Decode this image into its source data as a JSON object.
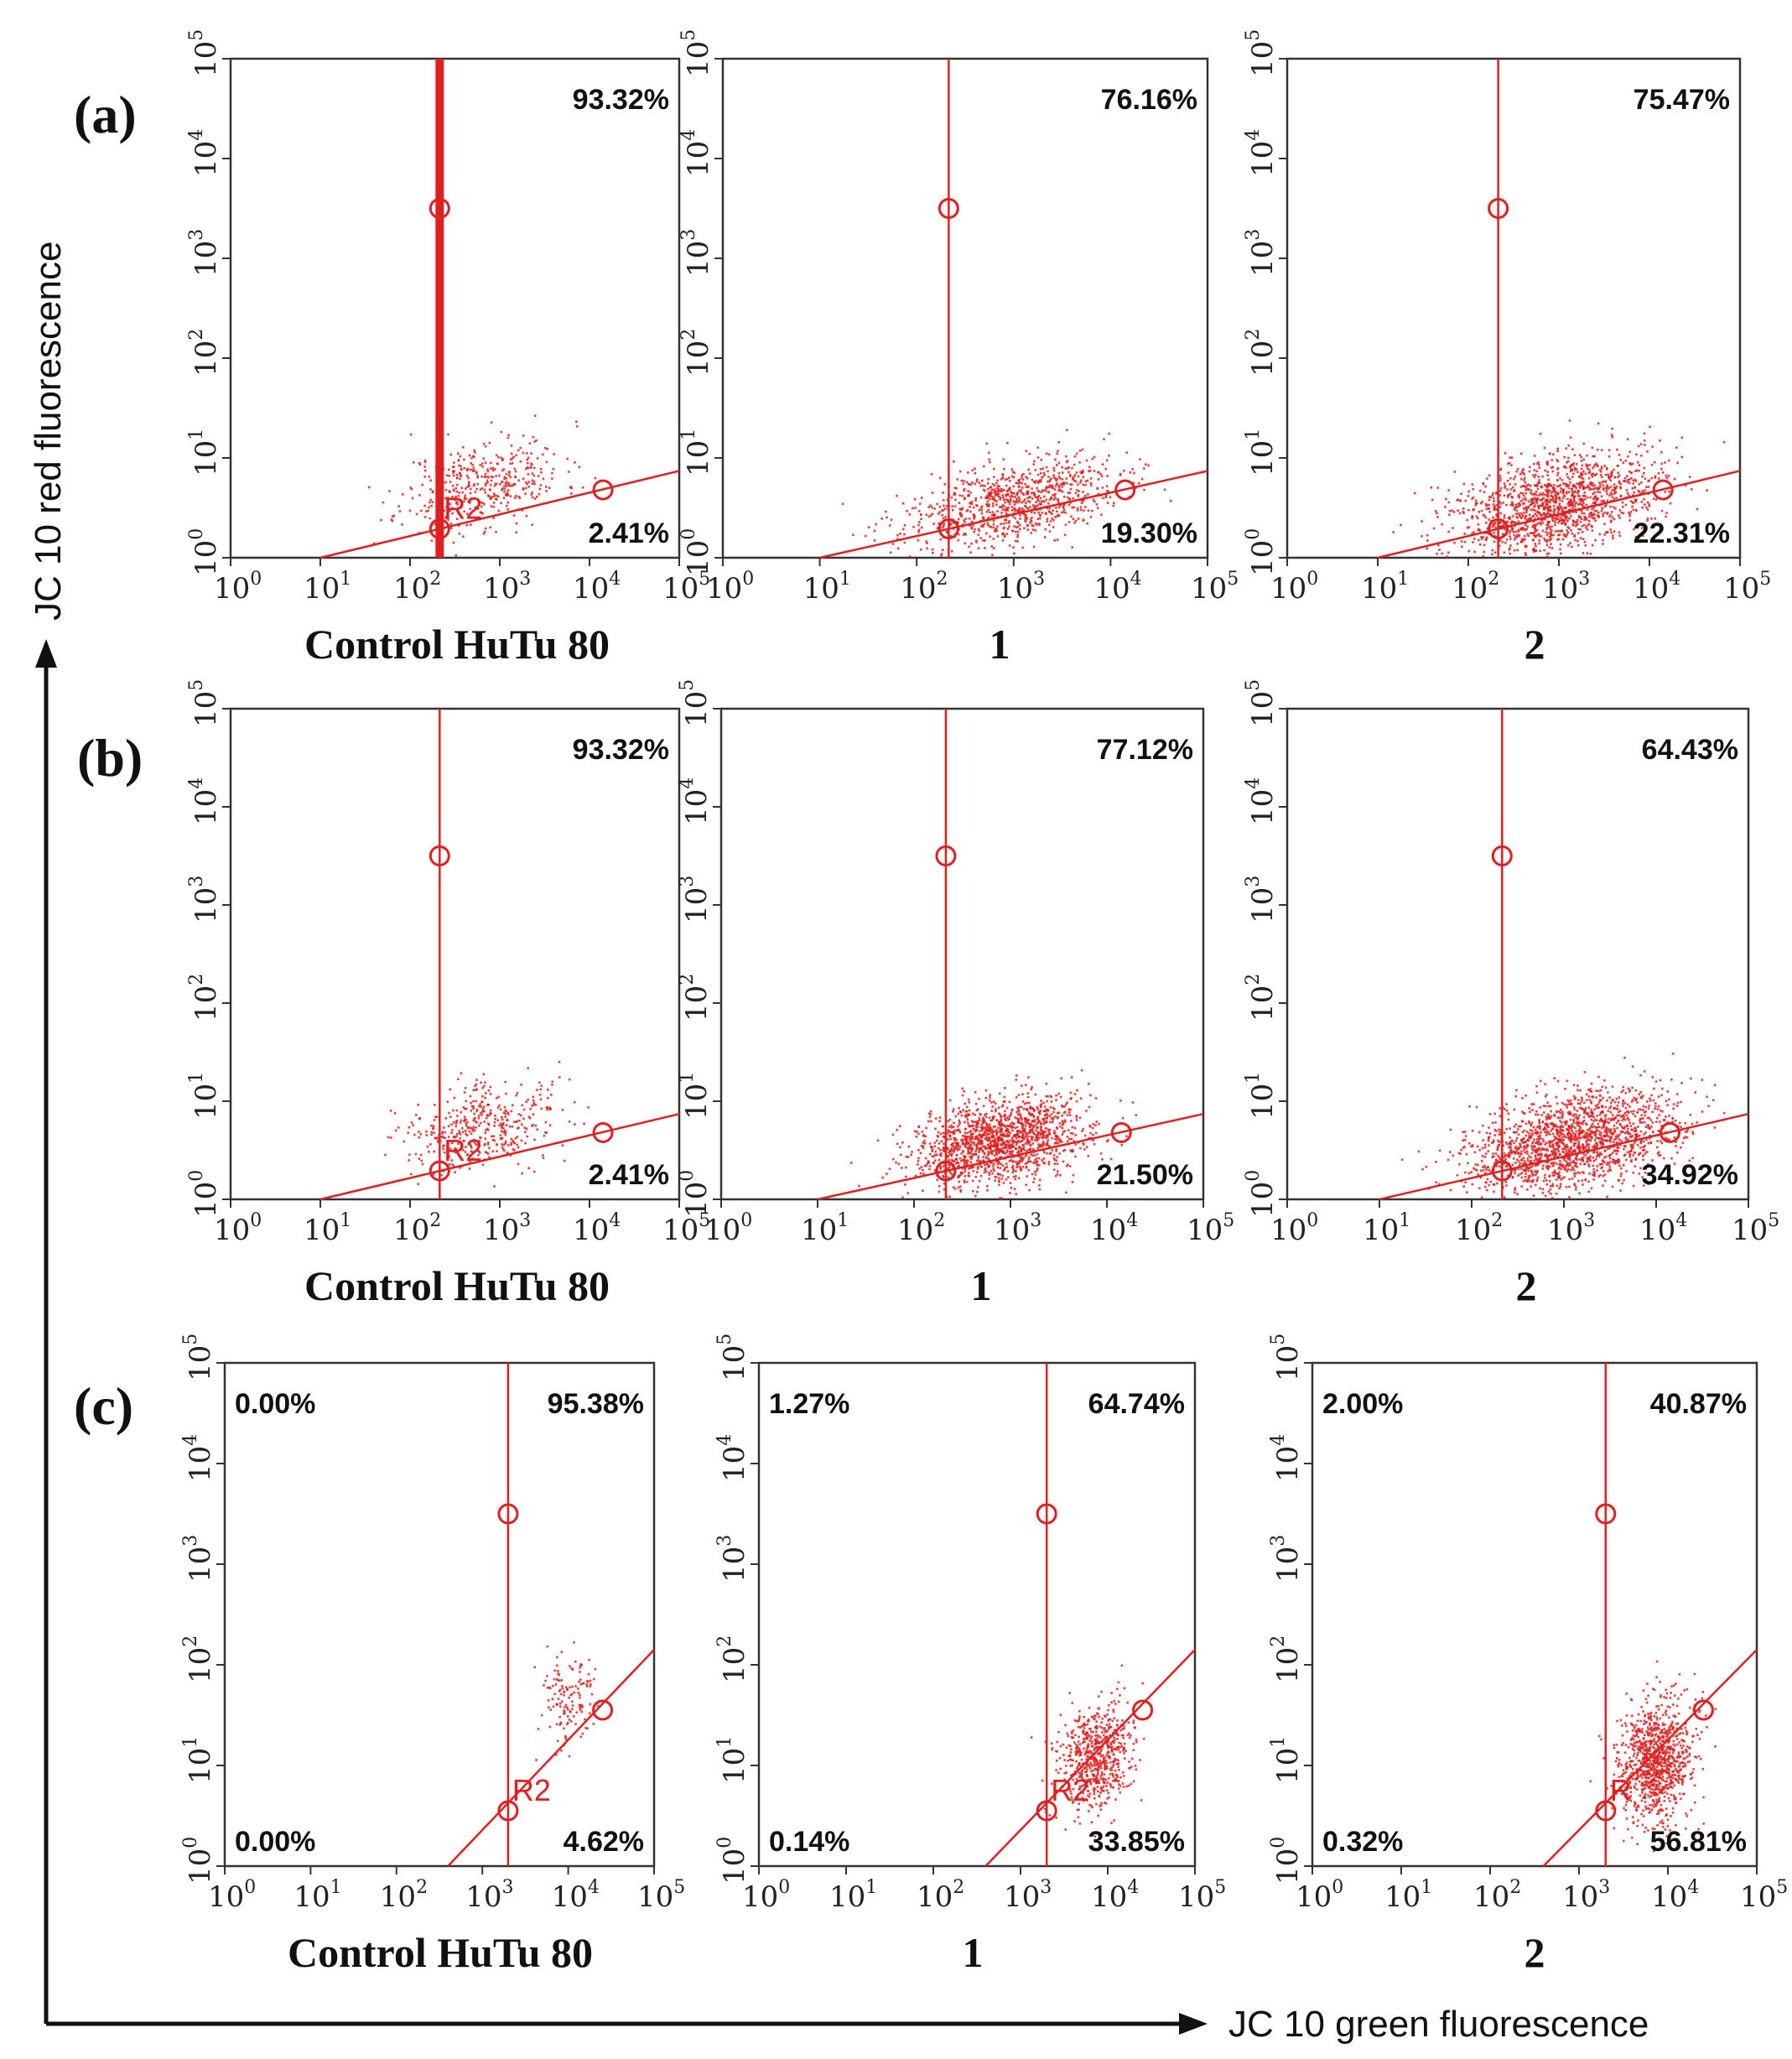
{
  "figure": {
    "y_axis_title": "JC 10 red fluorescence",
    "x_axis_title": "JC 10 green fluorescence",
    "accent_color": "#e02020"
  },
  "chart_data": [
    {
      "type": "scatter",
      "row": "(a)",
      "label": "Control HuTu 80",
      "quadrants": {
        "upper_right": "93.32%",
        "lower_right": "2.41%"
      },
      "gate_x": 2.33,
      "gate_line": [
        [
          1.0,
          0.0
        ],
        [
          5.0,
          0.87
        ]
      ],
      "gate_markers": [
        [
          2.33,
          3.5
        ],
        [
          2.33,
          0.29
        ],
        [
          4.15,
          0.68
        ]
      ],
      "r2_label": "R2",
      "cloud": {
        "center": [
          2.8,
          0.75
        ],
        "spread": [
          0.45,
          0.22
        ],
        "n": 420,
        "seed": 11
      },
      "xlim": [
        0,
        5
      ],
      "ylim": [
        0,
        5
      ],
      "xticks": [
        "10",
        "10",
        "10",
        "10",
        "10",
        "10"
      ],
      "tick_exp": [
        "0",
        "1",
        "2",
        "3",
        "4",
        "5"
      ]
    },
    {
      "type": "scatter",
      "row": "(a)",
      "label": "1",
      "quadrants": {
        "upper_right": "76.16%",
        "lower_right": "19.30%"
      },
      "gate_x": 2.33,
      "gate_line": [
        [
          1.0,
          0.0
        ],
        [
          5.0,
          0.87
        ]
      ],
      "gate_markers": [
        [
          2.33,
          3.5
        ],
        [
          2.33,
          0.29
        ],
        [
          4.15,
          0.68
        ]
      ],
      "r2_label": "",
      "cloud": {
        "center": [
          2.95,
          0.55
        ],
        "spread": [
          0.55,
          0.2
        ],
        "n": 900,
        "seed": 23
      },
      "xlim": [
        0,
        5
      ],
      "ylim": [
        0,
        5
      ],
      "xticks": [
        "10",
        "10",
        "10",
        "10",
        "10",
        "10"
      ],
      "tick_exp": [
        "0",
        "1",
        "2",
        "3",
        "4",
        "5"
      ]
    },
    {
      "type": "scatter",
      "row": "(a)",
      "label": "2",
      "quadrants": {
        "upper_right": "75.47%",
        "lower_right": "22.31%"
      },
      "gate_x": 2.33,
      "gate_line": [
        [
          1.0,
          0.0
        ],
        [
          5.0,
          0.87
        ]
      ],
      "gate_markers": [
        [
          2.33,
          3.5
        ],
        [
          2.33,
          0.29
        ],
        [
          4.15,
          0.68
        ]
      ],
      "r2_label": "",
      "cloud": {
        "center": [
          2.95,
          0.55
        ],
        "spread": [
          0.55,
          0.24
        ],
        "n": 1400,
        "seed": 37
      },
      "xlim": [
        0,
        5
      ],
      "ylim": [
        0,
        5
      ],
      "xticks": [
        "10",
        "10",
        "10",
        "10",
        "10",
        "10"
      ],
      "tick_exp": [
        "0",
        "1",
        "2",
        "3",
        "4",
        "5"
      ]
    },
    {
      "type": "scatter",
      "row": "(b)",
      "label": "Control HuTu 80",
      "quadrants": {
        "upper_right": "93.32%",
        "lower_right": "2.41%"
      },
      "gate_x": 2.33,
      "gate_line": [
        [
          1.0,
          0.0
        ],
        [
          5.0,
          0.87
        ]
      ],
      "gate_markers": [
        [
          2.33,
          3.5
        ],
        [
          2.33,
          0.29
        ],
        [
          4.15,
          0.68
        ]
      ],
      "r2_label": "R2",
      "cloud": {
        "center": [
          2.8,
          0.75
        ],
        "spread": [
          0.45,
          0.22
        ],
        "n": 420,
        "seed": 41
      },
      "xlim": [
        0,
        5
      ],
      "ylim": [
        0,
        5
      ],
      "xticks": [
        "10",
        "10",
        "10",
        "10",
        "10",
        "10"
      ],
      "tick_exp": [
        "0",
        "1",
        "2",
        "3",
        "4",
        "5"
      ]
    },
    {
      "type": "scatter",
      "row": "(b)",
      "label": "1",
      "quadrants": {
        "upper_right": "77.12%",
        "lower_right": "21.50%"
      },
      "gate_x": 2.33,
      "gate_line": [
        [
          1.0,
          0.0
        ],
        [
          5.0,
          0.87
        ]
      ],
      "gate_markers": [
        [
          2.33,
          3.5
        ],
        [
          2.33,
          0.29
        ],
        [
          4.15,
          0.68
        ]
      ],
      "r2_label": "",
      "cloud": {
        "center": [
          2.9,
          0.6
        ],
        "spread": [
          0.45,
          0.22
        ],
        "n": 1500,
        "seed": 53
      },
      "xlim": [
        0,
        5
      ],
      "ylim": [
        0,
        5
      ],
      "xticks": [
        "10",
        "10",
        "10",
        "10",
        "10",
        "10"
      ],
      "tick_exp": [
        "0",
        "1",
        "2",
        "3",
        "4",
        "5"
      ]
    },
    {
      "type": "scatter",
      "row": "(b)",
      "label": "2",
      "quadrants": {
        "upper_right": "64.43%",
        "lower_right": "34.92%"
      },
      "gate_x": 2.33,
      "gate_line": [
        [
          1.0,
          0.0
        ],
        [
          5.0,
          0.87
        ]
      ],
      "gate_markers": [
        [
          2.33,
          3.5
        ],
        [
          2.33,
          0.29
        ],
        [
          4.15,
          0.68
        ]
      ],
      "r2_label": "",
      "cloud": {
        "center": [
          3.1,
          0.6
        ],
        "spread": [
          0.55,
          0.24
        ],
        "n": 1700,
        "seed": 67
      },
      "xlim": [
        0,
        5
      ],
      "ylim": [
        0,
        5
      ],
      "xticks": [
        "10",
        "10",
        "10",
        "10",
        "10",
        "10"
      ],
      "tick_exp": [
        "0",
        "1",
        "2",
        "3",
        "4",
        "5"
      ]
    },
    {
      "type": "scatter",
      "row": "(c)",
      "label": "Control HuTu 80",
      "quadrants": {
        "upper_left": "0.00%",
        "upper_right": "95.38%",
        "lower_left": "0.00%",
        "lower_right": "4.62%"
      },
      "gate_x": 3.3,
      "gate_line": [
        [
          2.6,
          0.0
        ],
        [
          5.0,
          2.15
        ]
      ],
      "gate_markers": [
        [
          3.3,
          3.5
        ],
        [
          3.3,
          0.55
        ],
        [
          4.4,
          1.55
        ]
      ],
      "r2_label": "R2",
      "cloud": {
        "center": [
          4.0,
          1.65
        ],
        "spread": [
          0.18,
          0.25
        ],
        "n": 140,
        "seed": 71
      },
      "xlim": [
        0,
        5
      ],
      "ylim": [
        0,
        5
      ],
      "xticks": [
        "10",
        "10",
        "10",
        "10",
        "10",
        "10"
      ],
      "tick_exp": [
        "0",
        "1",
        "2",
        "3",
        "4",
        "5"
      ]
    },
    {
      "type": "scatter",
      "row": "(c)",
      "label": "1",
      "quadrants": {
        "upper_left": "1.27%",
        "upper_right": "64.74%",
        "lower_left": "0.14%",
        "lower_right": "33.85%"
      },
      "gate_x": 3.3,
      "gate_line": [
        [
          2.6,
          0.0
        ],
        [
          5.0,
          2.15
        ]
      ],
      "gate_markers": [
        [
          3.3,
          3.5
        ],
        [
          3.3,
          0.55
        ],
        [
          4.4,
          1.55
        ]
      ],
      "r2_label": "R2",
      "cloud": {
        "center": [
          3.85,
          1.1
        ],
        "spread": [
          0.22,
          0.25
        ],
        "n": 650,
        "seed": 83
      },
      "xlim": [
        0,
        5
      ],
      "ylim": [
        0,
        5
      ],
      "xticks": [
        "10",
        "10",
        "10",
        "10",
        "10",
        "10"
      ],
      "tick_exp": [
        "0",
        "1",
        "2",
        "3",
        "4",
        "5"
      ]
    },
    {
      "type": "scatter",
      "row": "(c)",
      "label": "2",
      "quadrants": {
        "upper_left": "2.00%",
        "upper_right": "40.87%",
        "lower_left": "0.32%",
        "lower_right": "56.81%"
      },
      "gate_x": 3.3,
      "gate_line": [
        [
          2.6,
          0.0
        ],
        [
          5.0,
          2.15
        ]
      ],
      "gate_markers": [
        [
          3.3,
          3.5
        ],
        [
          3.3,
          0.55
        ],
        [
          4.4,
          1.55
        ]
      ],
      "r2_label": "R",
      "cloud": {
        "center": [
          3.85,
          1.05
        ],
        "spread": [
          0.22,
          0.3
        ],
        "n": 1000,
        "seed": 97
      },
      "xlim": [
        0,
        5
      ],
      "ylim": [
        0,
        5
      ],
      "xticks": [
        "10",
        "10",
        "10",
        "10",
        "10",
        "10"
      ],
      "tick_exp": [
        "0",
        "1",
        "2",
        "3",
        "4",
        "5"
      ]
    }
  ]
}
